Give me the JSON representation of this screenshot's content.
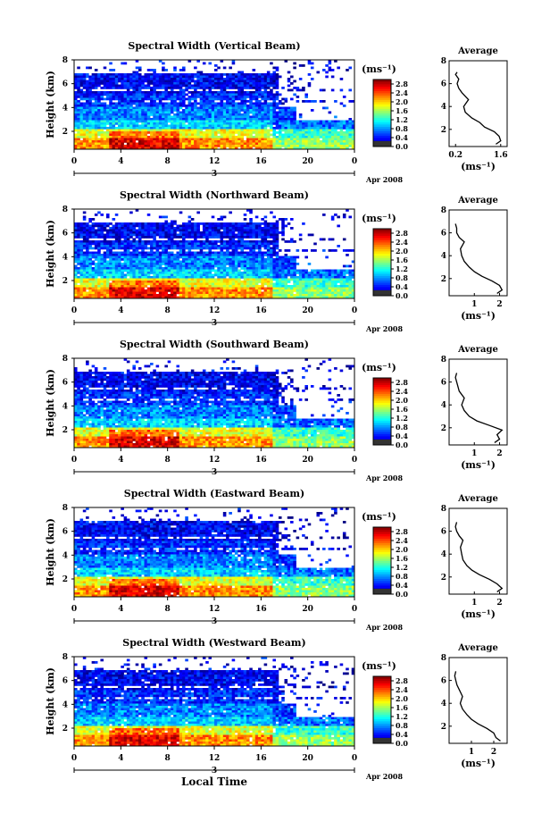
{
  "figure": {
    "xlabel": "Local Time",
    "ylabel": "Height (km)",
    "date_label": "Apr 2008",
    "day_tick": "3",
    "colorbar_unit": "(ms⁻¹)",
    "profile_title": "Average",
    "profile_unit": "(ms⁻¹)"
  },
  "chart_data": [
    {
      "type": "heatmap",
      "title": "Spectral Width (Vertical Beam)",
      "x_ticks": [
        "0",
        "4",
        "8",
        "12",
        "16",
        "20",
        "0"
      ],
      "xlim": [
        0,
        24
      ],
      "y_ticks": [
        "2",
        "4",
        "6",
        "8"
      ],
      "ylim": [
        0.5,
        8
      ],
      "colorbar_ticks": [
        "0.0",
        "0.4",
        "0.8",
        "1.2",
        "1.6",
        "2.0",
        "2.4",
        "2.8"
      ],
      "clim": [
        0,
        3.0
      ],
      "profile": {
        "title": "Average",
        "x_ticks": [
          "0.2",
          "1.6"
        ],
        "xlim": [
          0,
          1.8
        ],
        "x": [
          1.45,
          1.6,
          1.55,
          1.4,
          1.1,
          0.95,
          0.7,
          0.5,
          0.45,
          0.6,
          0.4,
          0.3,
          0.25,
          0.3,
          0.2,
          0.25
        ],
        "y": [
          0.7,
          1.0,
          1.4,
          1.8,
          2.2,
          2.6,
          3.0,
          3.5,
          4.0,
          4.6,
          5.2,
          5.6,
          6.0,
          6.4,
          6.8,
          7.0
        ]
      }
    },
    {
      "type": "heatmap",
      "title": "Spectral Width (Northward Beam)",
      "x_ticks": [
        "0",
        "4",
        "8",
        "12",
        "16",
        "20",
        "0"
      ],
      "xlim": [
        0,
        24
      ],
      "y_ticks": [
        "2",
        "4",
        "6",
        "8"
      ],
      "ylim": [
        0.5,
        8
      ],
      "colorbar_ticks": [
        "0.0",
        "0.4",
        "0.8",
        "1.2",
        "1.6",
        "2.0",
        "2.4",
        "2.8"
      ],
      "clim": [
        0,
        3.0
      ],
      "profile": {
        "title": "Average",
        "x_ticks": [
          "1",
          "2"
        ],
        "xlim": [
          0,
          2.3
        ],
        "x": [
          1.9,
          2.1,
          2.0,
          1.7,
          1.3,
          1.0,
          0.8,
          0.6,
          0.5,
          0.45,
          0.6,
          0.4,
          0.3,
          0.3,
          0.25
        ],
        "y": [
          0.7,
          1.0,
          1.4,
          1.8,
          2.2,
          2.6,
          3.0,
          3.5,
          4.0,
          4.6,
          5.2,
          5.6,
          6.0,
          6.4,
          6.8
        ]
      }
    },
    {
      "type": "heatmap",
      "title": "Spectral Width (Southward Beam)",
      "x_ticks": [
        "0",
        "4",
        "8",
        "12",
        "16",
        "20",
        "0"
      ],
      "xlim": [
        0,
        24
      ],
      "y_ticks": [
        "2",
        "4",
        "6",
        "8"
      ],
      "ylim": [
        0.5,
        8
      ],
      "colorbar_ticks": [
        "0.0",
        "0.4",
        "0.8",
        "1.2",
        "1.6",
        "2.0",
        "2.4",
        "2.8"
      ],
      "clim": [
        0,
        3.0
      ],
      "profile": {
        "title": "Average",
        "x_ticks": [
          "1",
          "2"
        ],
        "xlim": [
          0,
          2.3
        ],
        "x": [
          1.8,
          2.0,
          1.9,
          2.1,
          1.6,
          1.1,
          0.8,
          0.6,
          0.5,
          0.6,
          0.4,
          0.35,
          0.3,
          0.25,
          0.3
        ],
        "y": [
          0.7,
          1.0,
          1.4,
          1.8,
          2.2,
          2.6,
          3.0,
          3.5,
          4.0,
          4.6,
          5.2,
          5.6,
          6.0,
          6.4,
          6.8
        ]
      }
    },
    {
      "type": "heatmap",
      "title": "Spectral Width (Eastward Beam)",
      "x_ticks": [
        "0",
        "4",
        "8",
        "12",
        "16",
        "20",
        "0"
      ],
      "xlim": [
        0,
        24
      ],
      "y_ticks": [
        "2",
        "4",
        "6",
        "8"
      ],
      "ylim": [
        0.5,
        8
      ],
      "colorbar_ticks": [
        "0.0",
        "0.4",
        "0.8",
        "1.2",
        "1.6",
        "2.0",
        "2.4",
        "2.8"
      ],
      "clim": [
        0,
        3.0
      ],
      "profile": {
        "title": "Average",
        "x_ticks": [
          "1",
          "2"
        ],
        "xlim": [
          0,
          2.3
        ],
        "x": [
          1.9,
          2.1,
          1.9,
          1.6,
          1.2,
          0.9,
          0.7,
          0.55,
          0.5,
          0.45,
          0.55,
          0.4,
          0.3,
          0.25,
          0.3
        ],
        "y": [
          0.7,
          1.0,
          1.4,
          1.8,
          2.2,
          2.6,
          3.0,
          3.5,
          4.0,
          4.6,
          5.2,
          5.6,
          6.0,
          6.4,
          6.8
        ]
      }
    },
    {
      "type": "heatmap",
      "title": "Spectral Width (Westward Beam)",
      "x_ticks": [
        "0",
        "4",
        "8",
        "12",
        "16",
        "20",
        "0"
      ],
      "xlim": [
        0,
        24
      ],
      "y_ticks": [
        "2",
        "4",
        "6",
        "8"
      ],
      "ylim": [
        0.5,
        8
      ],
      "colorbar_ticks": [
        "0.0",
        "0.4",
        "0.8",
        "1.2",
        "1.6",
        "2.0",
        "2.4",
        "2.8"
      ],
      "clim": [
        0,
        3.0
      ],
      "profile": {
        "title": "Average",
        "x_ticks": [
          "1",
          "2"
        ],
        "xlim": [
          0,
          2.6
        ],
        "x": [
          2.3,
          2.1,
          2.0,
          1.7,
          1.3,
          1.0,
          0.8,
          0.6,
          0.5,
          0.6,
          0.45,
          0.35,
          0.3,
          0.25,
          0.3
        ],
        "y": [
          0.7,
          1.0,
          1.4,
          1.8,
          2.2,
          2.6,
          3.0,
          3.5,
          4.0,
          4.6,
          5.2,
          5.6,
          6.0,
          6.4,
          6.8
        ]
      }
    }
  ]
}
